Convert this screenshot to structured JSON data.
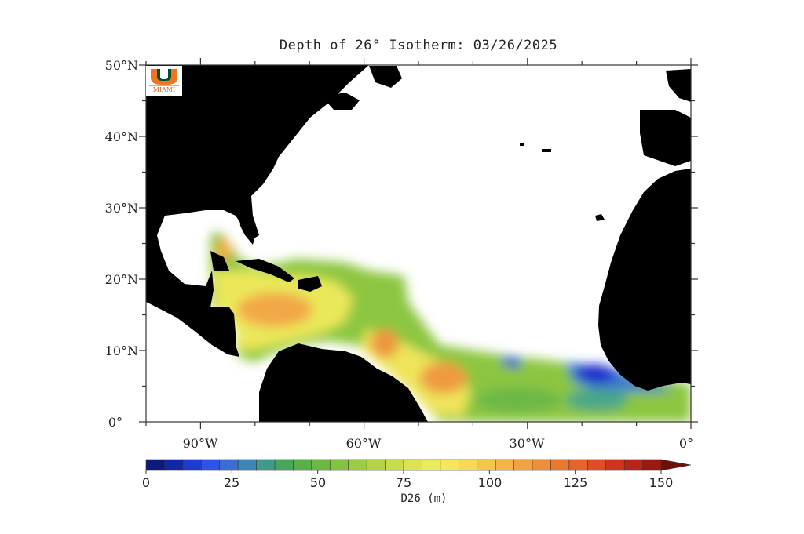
{
  "title": "Depth of 26° Isotherm: 03/26/2025",
  "logo": {
    "name": "university-of-miami-logo",
    "text": "MIAMI",
    "colors": {
      "orange": "#f47321",
      "green": "#005030"
    }
  },
  "map": {
    "lon_range": [
      -100,
      0
    ],
    "lat_range": [
      0,
      50
    ],
    "y_ticks": [
      "0°",
      "10°N",
      "20°N",
      "30°N",
      "40°N",
      "50°N"
    ],
    "x_ticks": [
      "90°W",
      "60°W",
      "30°W",
      "0°"
    ],
    "land_color": "#000000",
    "no_data_color": "#ffffff"
  },
  "colorbar": {
    "ticks": [
      "0",
      "25",
      "50",
      "75",
      "100",
      "125",
      "150"
    ],
    "label": "D26 (m)",
    "colors": [
      "#0d1a80",
      "#1028a8",
      "#1e3cd0",
      "#2f52e8",
      "#3a6ed0",
      "#3f86b8",
      "#3f9a8c",
      "#46a65a",
      "#58ae48",
      "#6cb842",
      "#82c440",
      "#9ccc42",
      "#b4d446",
      "#c8dc4c",
      "#dce454",
      "#ecec5a",
      "#f6e75a",
      "#f8d854",
      "#f6c64c",
      "#f4b446",
      "#f2a240",
      "#ee8e38",
      "#ea7830",
      "#e6642a",
      "#e04c24",
      "#d0341e",
      "#b82418",
      "#9c1810"
    ]
  }
}
